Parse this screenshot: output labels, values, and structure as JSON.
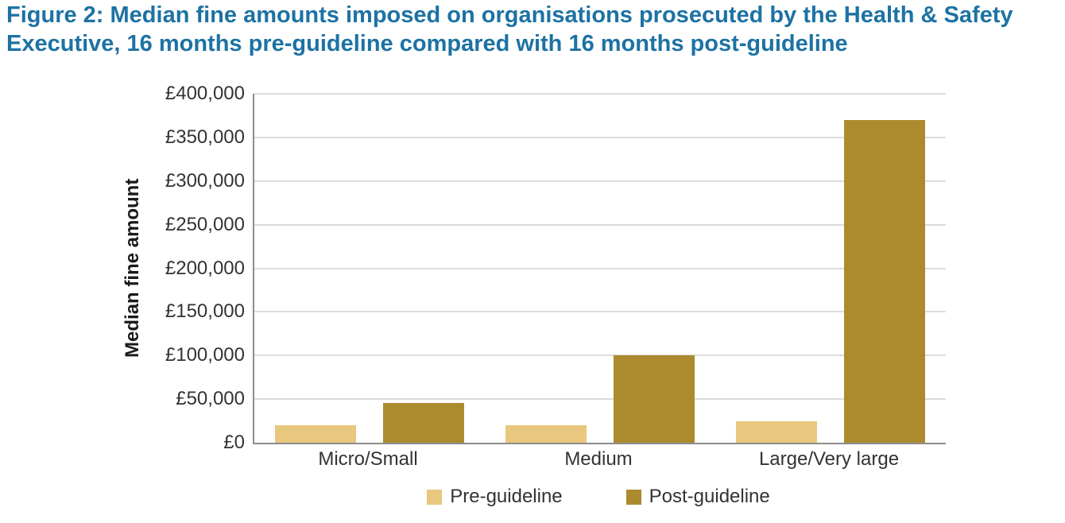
{
  "chart_data": {
    "type": "bar",
    "title": "Figure 2: Median fine amounts imposed on organisations prosecuted by the Health & Safety Executive, 16 months pre-guideline compared with 16 months post-guideline",
    "title_color": "#1d72a3",
    "categories": [
      "Micro/Small",
      "Medium",
      "Large/Very large"
    ],
    "series": [
      {
        "name": "Pre-guideline",
        "color": "#e8c87e",
        "values": [
          20000,
          20000,
          25000
        ]
      },
      {
        "name": "Post-guideline",
        "color": "#ac8a2e",
        "values": [
          46000,
          100000,
          370000
        ]
      }
    ],
    "xlabel": "",
    "ylabel": "Median fine amount",
    "ylim": [
      0,
      400000
    ],
    "ytick_step": 50000,
    "currency_prefix": "£",
    "grid": "horizontal-gridlines",
    "legend_position": "bottom"
  }
}
